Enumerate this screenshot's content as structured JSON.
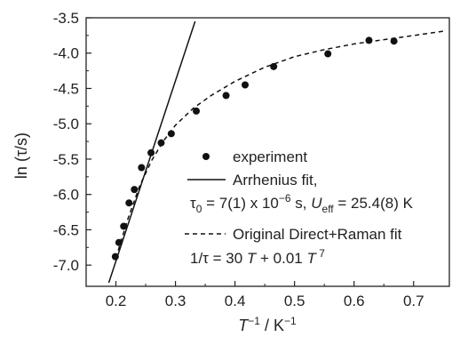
{
  "chart_data": {
    "type": "scatter",
    "xlabel": "T⁻¹ / K⁻¹",
    "ylabel": "ln (τ/s)",
    "xlim": [
      0.15,
      0.76
    ],
    "ylim": [
      -7.3,
      -3.5
    ],
    "xticks": [
      0.2,
      0.3,
      0.4,
      0.5,
      0.6,
      0.7
    ],
    "xtick_labels": [
      "0.2",
      "0.3",
      "0.4",
      "0.5",
      "0.6",
      "0.7"
    ],
    "yticks": [
      -7.0,
      -6.5,
      -6.0,
      -5.5,
      -5.0,
      -4.5,
      -4.0,
      -3.5
    ],
    "ytick_labels": [
      "-7.0",
      "-6.5",
      "-6.0",
      "-5.5",
      "-5.0",
      "-4.5",
      "-4.0",
      "-3.5"
    ],
    "grid": false,
    "legend_position": "center-right",
    "series": [
      {
        "name": "experiment",
        "style": "points",
        "x": [
          0.199,
          0.205,
          0.213,
          0.222,
          0.231,
          0.243,
          0.259,
          0.276,
          0.293,
          0.335,
          0.385,
          0.417,
          0.465,
          0.556,
          0.625,
          0.667
        ],
        "y": [
          -6.88,
          -6.68,
          -6.45,
          -6.12,
          -5.93,
          -5.62,
          -5.41,
          -5.27,
          -5.14,
          -4.82,
          -4.6,
          -4.45,
          -4.19,
          -4.01,
          -3.82,
          -3.83
        ]
      },
      {
        "name": "Arrhenius fit,",
        "style": "solid-line",
        "x": [
          0.188,
          0.333
        ],
        "y": [
          -7.25,
          -3.55
        ]
      },
      {
        "name": "Original Direct+Raman fit",
        "style": "dashed-line",
        "x": [
          0.2,
          0.22,
          0.24,
          0.26,
          0.28,
          0.3,
          0.33,
          0.36,
          0.4,
          0.45,
          0.5,
          0.55,
          0.6,
          0.65,
          0.7,
          0.75
        ],
        "y": [
          -6.9,
          -6.35,
          -5.88,
          -5.52,
          -5.24,
          -5.02,
          -4.78,
          -4.6,
          -4.4,
          -4.2,
          -4.05,
          -3.95,
          -3.87,
          -3.81,
          -3.75,
          -3.69
        ]
      }
    ],
    "annotations": {
      "arrhenius_params": "τ0 = 7(1) x 10⁻⁶ s, Ueff = 25.4(8) K",
      "raman_equation": "1/τ = 30 T + 0.01 T 7"
    }
  }
}
